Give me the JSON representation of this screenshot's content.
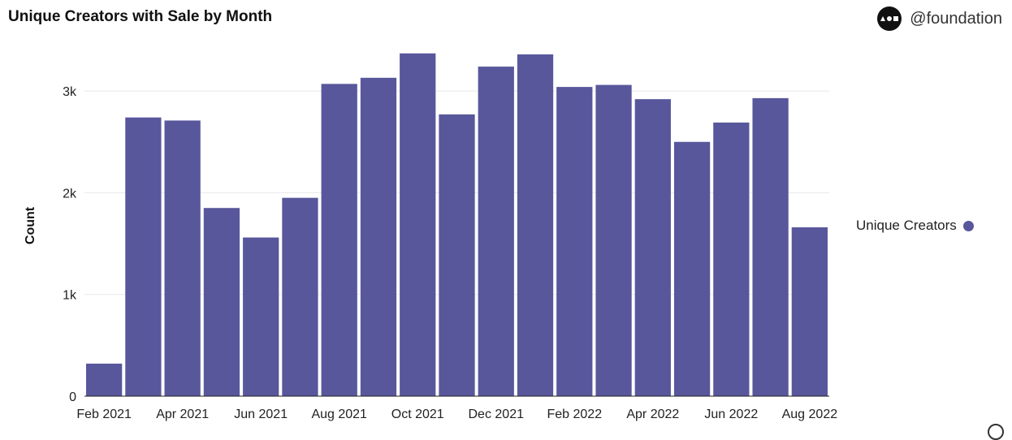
{
  "header": {
    "title": "Unique Creators with Sale by Month",
    "brand": "@foundation",
    "brand_icon": "foundation-logo-icon"
  },
  "legend": {
    "label": "Unique Creators",
    "color": "#58579c"
  },
  "chart_data": {
    "type": "bar",
    "title": "Unique Creators with Sale by Month",
    "xlabel": "",
    "ylabel": "Count",
    "categories": [
      "Feb 2021",
      "Mar 2021",
      "Apr 2021",
      "May 2021",
      "Jun 2021",
      "Jul 2021",
      "Aug 2021",
      "Sep 2021",
      "Oct 2021",
      "Nov 2021",
      "Dec 2021",
      "Jan 2022",
      "Feb 2022",
      "Mar 2022",
      "Apr 2022",
      "May 2022",
      "Jun 2022",
      "Jul 2022",
      "Aug 2022"
    ],
    "x_tick_labels": [
      "Feb 2021",
      "Apr 2021",
      "Jun 2021",
      "Aug 2021",
      "Oct 2021",
      "Dec 2021",
      "Feb 2022",
      "Apr 2022",
      "Jun 2022",
      "Aug 2022"
    ],
    "series": [
      {
        "name": "Unique Creators",
        "values": [
          320,
          2740,
          2710,
          1850,
          1560,
          1950,
          3070,
          3130,
          3370,
          2770,
          3240,
          3360,
          3040,
          3060,
          2920,
          2500,
          2690,
          2930,
          1660
        ]
      }
    ],
    "ylim": [
      0,
      3400
    ],
    "y_ticks": [
      0,
      1000,
      2000,
      3000
    ],
    "y_tick_labels": [
      "0",
      "1k",
      "2k",
      "3k"
    ],
    "grid": true,
    "legend_position": "right",
    "bar_color": "#58579c"
  }
}
